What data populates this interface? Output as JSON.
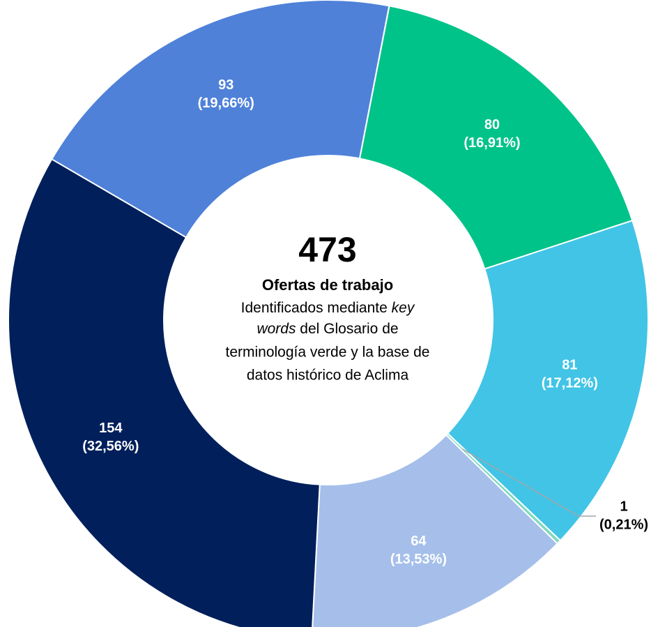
{
  "chart_data": {
    "type": "donut",
    "categories": [
      null,
      null,
      null,
      null,
      null,
      null
    ],
    "values": [
      80,
      81,
      1,
      64,
      154,
      93
    ],
    "percentages": [
      16.91,
      17.12,
      0.21,
      13.53,
      32.56,
      19.66
    ],
    "percentage_labels": [
      "(16,91%)",
      "(17,12%)",
      "(0,21%)",
      "(13,53%)",
      "(32,56%)",
      "(19,66%)"
    ],
    "colors": [
      "#00c389",
      "#41c4e6",
      "#7fd8c0",
      "#a5bfea",
      "#001f5b",
      "#4f81d9"
    ],
    "label_colors": [
      "#ffffff",
      "#ffffff",
      "#000000",
      "#ffffff",
      "#ffffff",
      "#ffffff"
    ],
    "total": 473,
    "center_title": "Ofertas de trabajo",
    "description": [
      "Identificados mediante ",
      "key",
      "words",
      " del Glosario de",
      "terminología verde y la base de",
      "datos histórico de Aclima"
    ]
  }
}
